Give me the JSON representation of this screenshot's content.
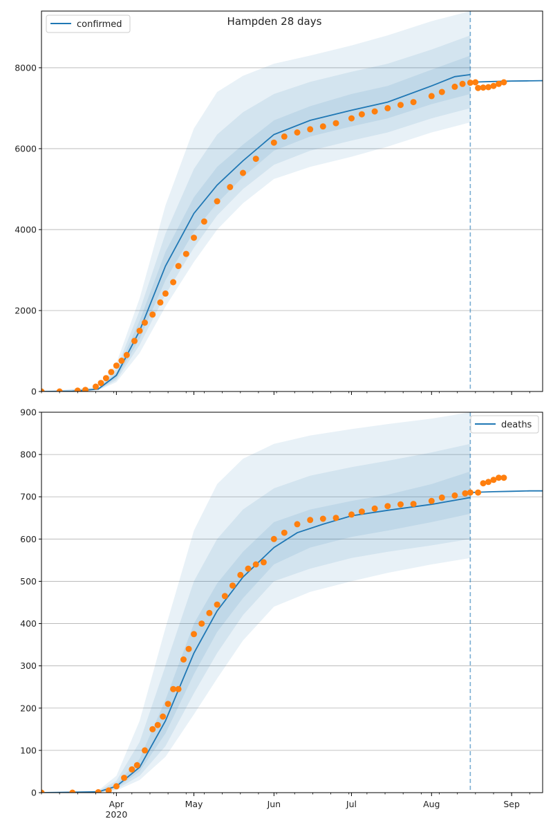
{
  "chart_data": [
    {
      "type": "line",
      "title": "Hampden 28 days",
      "legend": {
        "entry": "confirmed",
        "placement": "top-left"
      },
      "xlim": [
        "2020-03-03",
        "2020-09-13"
      ],
      "ylim": [
        0,
        9400
      ],
      "yticks": [
        0,
        2000,
        4000,
        6000,
        8000
      ],
      "ytick_labels": [
        "0",
        "2000",
        "4000",
        "6000",
        "8000"
      ],
      "forecast_start": "2020-08-16",
      "colors": {
        "line": "#1f77b4",
        "observed": "#ff7f0e",
        "band": "#1f77b4"
      },
      "model_series": {
        "name": "confirmed",
        "x": [
          "2020-03-03",
          "2020-03-15",
          "2020-03-25",
          "2020-04-01",
          "2020-04-10",
          "2020-04-20",
          "2020-05-01",
          "2020-05-10",
          "2020-05-20",
          "2020-06-01",
          "2020-06-15",
          "2020-07-01",
          "2020-07-15",
          "2020-08-01",
          "2020-08-10",
          "2020-08-16"
        ],
        "y": [
          0,
          5,
          60,
          400,
          1500,
          3100,
          4400,
          5100,
          5700,
          6350,
          6700,
          6950,
          7150,
          7550,
          7780,
          7830
        ]
      },
      "bands": [
        {
          "x": [
            "2020-03-03",
            "2020-03-25",
            "2020-04-01",
            "2020-04-10",
            "2020-04-20",
            "2020-05-01",
            "2020-05-10",
            "2020-05-20",
            "2020-06-01",
            "2020-06-15",
            "2020-07-01",
            "2020-07-15",
            "2020-08-01",
            "2020-08-16"
          ],
          "low": [
            0,
            30,
            230,
            950,
            2100,
            3200,
            4000,
            4650,
            5250,
            5550,
            5800,
            6050,
            6400,
            6650
          ],
          "high": [
            0,
            110,
            700,
            2300,
            4600,
            6500,
            7400,
            7800,
            8100,
            8300,
            8550,
            8800,
            9150,
            9400
          ]
        },
        {
          "x": [
            "2020-03-03",
            "2020-03-25",
            "2020-04-01",
            "2020-04-10",
            "2020-04-20",
            "2020-05-01",
            "2020-05-10",
            "2020-05-20",
            "2020-06-01",
            "2020-06-15",
            "2020-07-01",
            "2020-07-15",
            "2020-08-01",
            "2020-08-16"
          ],
          "low": [
            0,
            40,
            280,
            1150,
            2400,
            3550,
            4350,
            5000,
            5600,
            5950,
            6200,
            6400,
            6750,
            7000
          ],
          "high": [
            0,
            90,
            560,
            2000,
            3900,
            5500,
            6350,
            6900,
            7350,
            7650,
            7900,
            8100,
            8450,
            8800
          ]
        },
        {
          "x": [
            "2020-03-03",
            "2020-03-25",
            "2020-04-01",
            "2020-04-10",
            "2020-04-20",
            "2020-05-01",
            "2020-05-10",
            "2020-05-20",
            "2020-06-01",
            "2020-06-15",
            "2020-07-01",
            "2020-07-15",
            "2020-08-01",
            "2020-08-16"
          ],
          "low": [
            0,
            50,
            330,
            1300,
            2750,
            3950,
            4650,
            5300,
            5950,
            6300,
            6550,
            6750,
            7100,
            7350
          ],
          "high": [
            0,
            75,
            470,
            1750,
            3450,
            4800,
            5550,
            6100,
            6700,
            7050,
            7350,
            7550,
            7950,
            8300
          ]
        }
      ],
      "post_forecast_line": {
        "x": [
          "2020-08-16",
          "2020-08-20",
          "2020-08-25",
          "2020-09-01",
          "2020-09-08",
          "2020-09-13"
        ],
        "y": [
          7640,
          7650,
          7660,
          7670,
          7675,
          7680
        ]
      },
      "observed": {
        "x": [
          "2020-03-03",
          "2020-03-10",
          "2020-03-17",
          "2020-03-20",
          "2020-03-24",
          "2020-03-26",
          "2020-03-28",
          "2020-03-30",
          "2020-04-01",
          "2020-04-03",
          "2020-04-05",
          "2020-04-08",
          "2020-04-10",
          "2020-04-12",
          "2020-04-15",
          "2020-04-18",
          "2020-04-20",
          "2020-04-23",
          "2020-04-25",
          "2020-04-28",
          "2020-05-01",
          "2020-05-05",
          "2020-05-10",
          "2020-05-15",
          "2020-05-20",
          "2020-05-25",
          "2020-06-01",
          "2020-06-05",
          "2020-06-10",
          "2020-06-15",
          "2020-06-20",
          "2020-06-25",
          "2020-07-01",
          "2020-07-05",
          "2020-07-10",
          "2020-07-15",
          "2020-07-20",
          "2020-07-25",
          "2020-08-01",
          "2020-08-05",
          "2020-08-10",
          "2020-08-13",
          "2020-08-16",
          "2020-08-18",
          "2020-08-19",
          "2020-08-21",
          "2020-08-23",
          "2020-08-25",
          "2020-08-27",
          "2020-08-29"
        ],
        "y": [
          0,
          0,
          20,
          40,
          120,
          210,
          330,
          480,
          640,
          760,
          900,
          1250,
          1500,
          1700,
          1900,
          2200,
          2420,
          2700,
          3100,
          3400,
          3800,
          4200,
          4700,
          5050,
          5400,
          5750,
          6150,
          6300,
          6400,
          6480,
          6550,
          6630,
          6750,
          6850,
          6920,
          7000,
          7080,
          7150,
          7300,
          7400,
          7530,
          7600,
          7630,
          7640,
          7500,
          7510,
          7520,
          7550,
          7600,
          7640
        ]
      }
    },
    {
      "type": "line",
      "legend": {
        "entry": "deaths",
        "placement": "top-right"
      },
      "xlim": [
        "2020-03-03",
        "2020-09-13"
      ],
      "ylim": [
        0,
        900
      ],
      "yticks": [
        0,
        100,
        200,
        300,
        400,
        500,
        600,
        700,
        800,
        900
      ],
      "ytick_labels": [
        "0",
        "100",
        "200",
        "300",
        "400",
        "500",
        "600",
        "700",
        "800",
        "900"
      ],
      "xticks": [
        "2020-04-01",
        "2020-05-01",
        "2020-06-01",
        "2020-07-01",
        "2020-08-01",
        "2020-09-01"
      ],
      "xtick_labels": [
        "Apr",
        "May",
        "Jun",
        "Jul",
        "Aug",
        "Sep"
      ],
      "xtick_year": "2020",
      "forecast_start": "2020-08-16",
      "colors": {
        "line": "#1f77b4",
        "observed": "#ff7f0e",
        "band": "#1f77b4"
      },
      "model_series": {
        "name": "deaths",
        "x": [
          "2020-03-03",
          "2020-03-25",
          "2020-04-01",
          "2020-04-10",
          "2020-04-20",
          "2020-05-01",
          "2020-05-10",
          "2020-05-20",
          "2020-06-01",
          "2020-06-10",
          "2020-06-20",
          "2020-07-01",
          "2020-07-15",
          "2020-08-01",
          "2020-08-16"
        ],
        "y": [
          0,
          2,
          15,
          60,
          170,
          330,
          430,
          510,
          580,
          615,
          635,
          655,
          668,
          682,
          698
        ]
      },
      "bands": [
        {
          "x": [
            "2020-03-03",
            "2020-03-25",
            "2020-04-01",
            "2020-04-10",
            "2020-04-20",
            "2020-05-01",
            "2020-05-10",
            "2020-05-20",
            "2020-06-01",
            "2020-06-15",
            "2020-07-01",
            "2020-07-15",
            "2020-08-01",
            "2020-08-16"
          ],
          "low": [
            0,
            0,
            5,
            30,
            85,
            185,
            270,
            360,
            440,
            475,
            500,
            520,
            540,
            555
          ],
          "high": [
            0,
            5,
            40,
            170,
            390,
            620,
            730,
            790,
            825,
            845,
            860,
            872,
            885,
            900
          ]
        },
        {
          "x": [
            "2020-03-03",
            "2020-03-25",
            "2020-04-01",
            "2020-04-10",
            "2020-04-20",
            "2020-05-01",
            "2020-05-10",
            "2020-05-20",
            "2020-06-01",
            "2020-06-15",
            "2020-07-01",
            "2020-07-15",
            "2020-08-01",
            "2020-08-16"
          ],
          "low": [
            0,
            0,
            8,
            40,
            110,
            235,
            330,
            420,
            500,
            530,
            555,
            570,
            585,
            600
          ],
          "high": [
            0,
            4,
            28,
            120,
            300,
            500,
            600,
            670,
            720,
            750,
            770,
            785,
            805,
            825
          ]
        },
        {
          "x": [
            "2020-03-03",
            "2020-03-25",
            "2020-04-01",
            "2020-04-10",
            "2020-04-20",
            "2020-05-01",
            "2020-05-10",
            "2020-05-20",
            "2020-06-01",
            "2020-06-15",
            "2020-07-01",
            "2020-07-15",
            "2020-08-01",
            "2020-08-16"
          ],
          "low": [
            0,
            1,
            11,
            50,
            140,
            280,
            380,
            460,
            540,
            580,
            605,
            620,
            640,
            660
          ],
          "high": [
            0,
            3,
            20,
            80,
            220,
            400,
            495,
            570,
            640,
            670,
            690,
            705,
            730,
            760
          ]
        }
      ],
      "post_forecast_line": {
        "x": [
          "2020-08-16",
          "2020-08-20",
          "2020-08-25",
          "2020-09-01",
          "2020-09-08",
          "2020-09-13"
        ],
        "y": [
          710,
          711,
          712,
          713,
          714,
          714
        ]
      },
      "observed": {
        "x": [
          "2020-03-03",
          "2020-03-15",
          "2020-03-25",
          "2020-03-29",
          "2020-04-01",
          "2020-04-04",
          "2020-04-07",
          "2020-04-09",
          "2020-04-12",
          "2020-04-15",
          "2020-04-17",
          "2020-04-19",
          "2020-04-21",
          "2020-04-23",
          "2020-04-25",
          "2020-04-27",
          "2020-04-29",
          "2020-05-01",
          "2020-05-04",
          "2020-05-07",
          "2020-05-10",
          "2020-05-13",
          "2020-05-16",
          "2020-05-19",
          "2020-05-22",
          "2020-05-25",
          "2020-05-28",
          "2020-06-01",
          "2020-06-05",
          "2020-06-10",
          "2020-06-15",
          "2020-06-20",
          "2020-06-25",
          "2020-07-01",
          "2020-07-05",
          "2020-07-10",
          "2020-07-15",
          "2020-07-20",
          "2020-07-25",
          "2020-08-01",
          "2020-08-05",
          "2020-08-10",
          "2020-08-14",
          "2020-08-16",
          "2020-08-19",
          "2020-08-21",
          "2020-08-23",
          "2020-08-25",
          "2020-08-27",
          "2020-08-29"
        ],
        "y": [
          0,
          0,
          1,
          5,
          15,
          35,
          55,
          65,
          100,
          150,
          160,
          180,
          210,
          245,
          245,
          315,
          340,
          375,
          400,
          425,
          445,
          465,
          490,
          515,
          530,
          540,
          545,
          600,
          615,
          635,
          645,
          648,
          650,
          658,
          665,
          672,
          678,
          682,
          683,
          690,
          698,
          703,
          708,
          710,
          710,
          732,
          735,
          740,
          745,
          745
        ]
      }
    }
  ]
}
